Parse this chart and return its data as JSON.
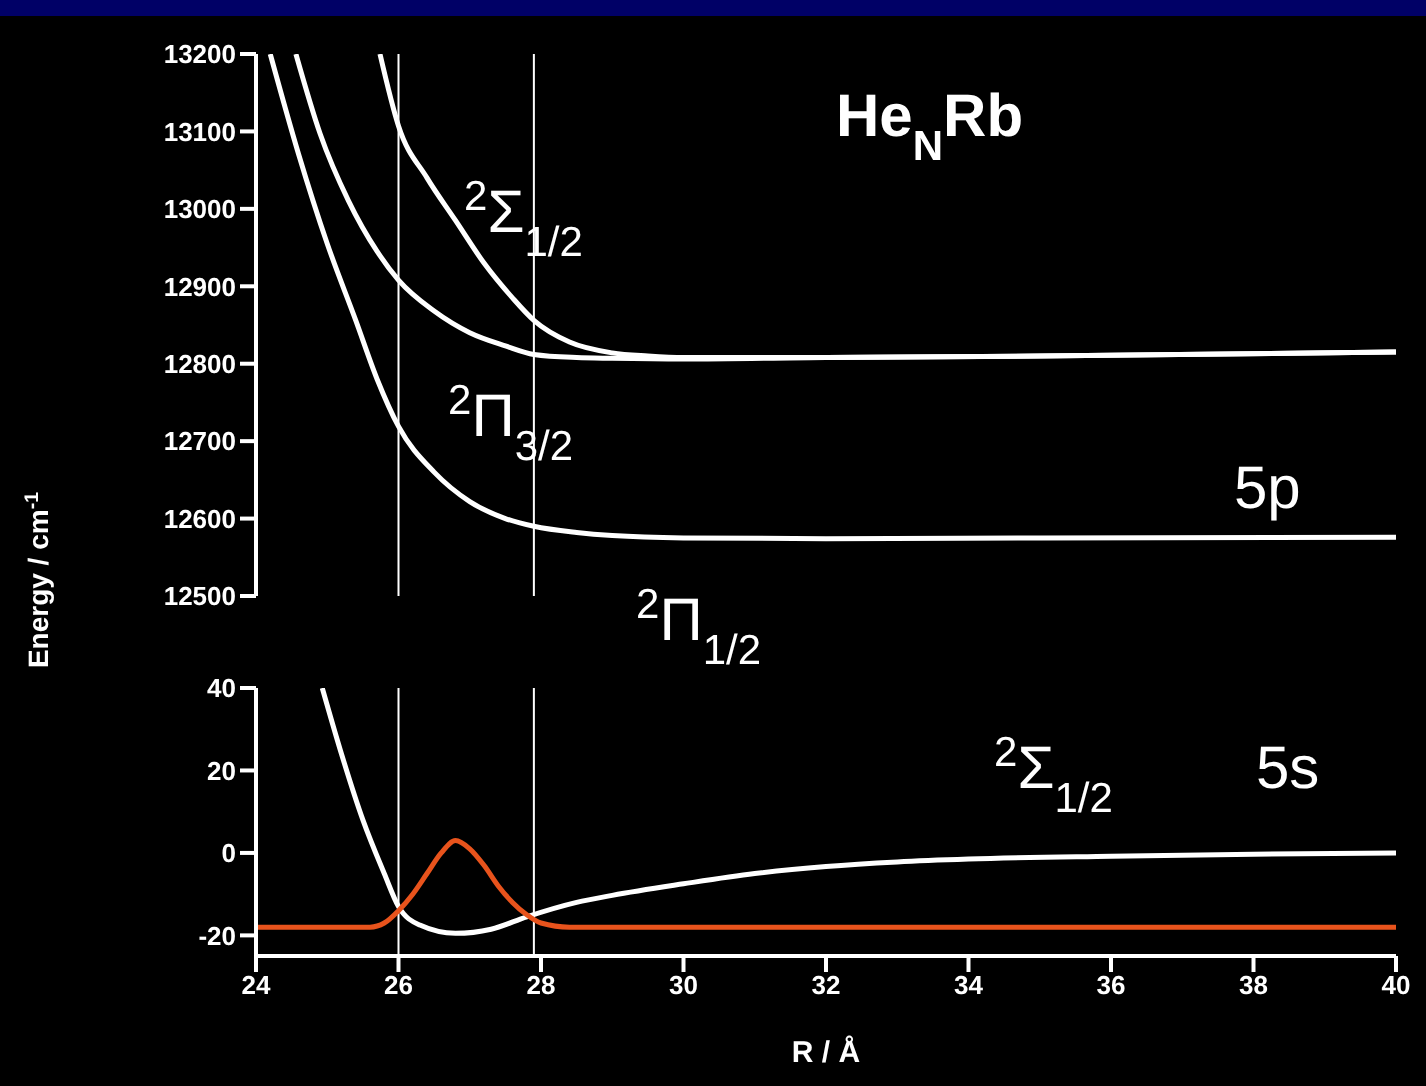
{
  "chart_data": [
    {
      "type": "line",
      "title": "He$_{N}$Rb",
      "ylabel": "Energy / cm$^{-1}$",
      "xlim": [
        24,
        40
      ],
      "ylim": [
        12500,
        13200
      ],
      "yticks": [
        12500,
        12600,
        12700,
        12800,
        12900,
        13000,
        13100,
        13200
      ],
      "tick_labels": "y",
      "marker": "none",
      "line_style": "solid",
      "annotations": [
        "$^{2}$Σ$_{1/2}$",
        "$^{2}$Π$_{3/2}$",
        "$^{2}$Π$_{1/2}$",
        "5p"
      ],
      "ref_lines": [
        {
          "axis": "x",
          "value": 26,
          "color": "#ffffff"
        },
        {
          "axis": "x",
          "value": 27.9,
          "color": "#ffffff"
        }
      ],
      "series": [
        {
          "color": "#ffffff",
          "x": [
            25.74,
            26,
            26.4,
            26.8,
            27.2,
            27.6,
            27.9,
            28.4,
            29,
            29.5,
            30,
            32,
            35,
            40
          ],
          "values": [
            13200,
            13107,
            13040,
            12985,
            12930,
            12885,
            12856,
            12828,
            12814,
            12810,
            12808,
            12808,
            12810,
            12815
          ]
        },
        {
          "color": "#ffffff",
          "x": [
            24.56,
            24.9,
            25.3,
            25.7,
            26,
            26.5,
            27,
            27.5,
            27.9,
            28.5,
            29,
            30,
            32,
            35,
            40
          ],
          "values": [
            13200,
            13097,
            13010,
            12945,
            12908,
            12868,
            12840,
            12823,
            12812,
            12808,
            12807,
            12806,
            12808,
            12810,
            12815
          ]
        },
        {
          "color": "#ffffff",
          "x": [
            24.2,
            24.6,
            25,
            25.4,
            25.7,
            26,
            26.5,
            27,
            27.5,
            27.9,
            28.5,
            29,
            30,
            32,
            35,
            40
          ],
          "values": [
            13200,
            13070,
            12955,
            12856,
            12780,
            12719,
            12660,
            12622,
            12600,
            12590,
            12582,
            12578,
            12575,
            12574,
            12575,
            12576
          ]
        }
      ]
    },
    {
      "type": "line",
      "xlabel": "R / Å",
      "xlim": [
        24,
        40
      ],
      "xticks": [
        24,
        26,
        28,
        30,
        32,
        34,
        36,
        38,
        40
      ],
      "ylim": [
        -25,
        40
      ],
      "yticks": [
        -20,
        0,
        20,
        40
      ],
      "marker": "none",
      "line_style": "solid",
      "annotations": [
        "$^{2}$Σ$_{1/2}$",
        "5s"
      ],
      "ref_lines": [
        {
          "axis": "x",
          "value": 26,
          "color": "#ffffff"
        },
        {
          "axis": "x",
          "value": 27.9,
          "color": "#ffffff"
        }
      ],
      "series": [
        {
          "color": "#ffffff",
          "x": [
            24.93,
            25.2,
            25.5,
            25.8,
            26,
            26.3,
            26.8,
            27.3,
            27.8,
            28.5,
            29,
            30,
            31,
            32,
            33,
            34,
            36,
            38,
            40
          ],
          "values": [
            40,
            24,
            8,
            -5,
            -13,
            -17.5,
            -19.5,
            -18.5,
            -15.5,
            -12,
            -10.3,
            -7.5,
            -5,
            -3.3,
            -2.2,
            -1.5,
            -0.8,
            -0.3,
            0
          ]
        },
        {
          "color": "#e8531c",
          "x": [
            24,
            25.6,
            25.8,
            26,
            26.2,
            26.4,
            26.6,
            26.8,
            27,
            27.2,
            27.4,
            27.6,
            27.8,
            28,
            28.4,
            40
          ],
          "values": [
            -18,
            -18,
            -17,
            -14,
            -10,
            -5,
            0,
            3,
            1,
            -3,
            -8,
            -12,
            -15,
            -17,
            -18,
            -18
          ]
        }
      ]
    }
  ]
}
